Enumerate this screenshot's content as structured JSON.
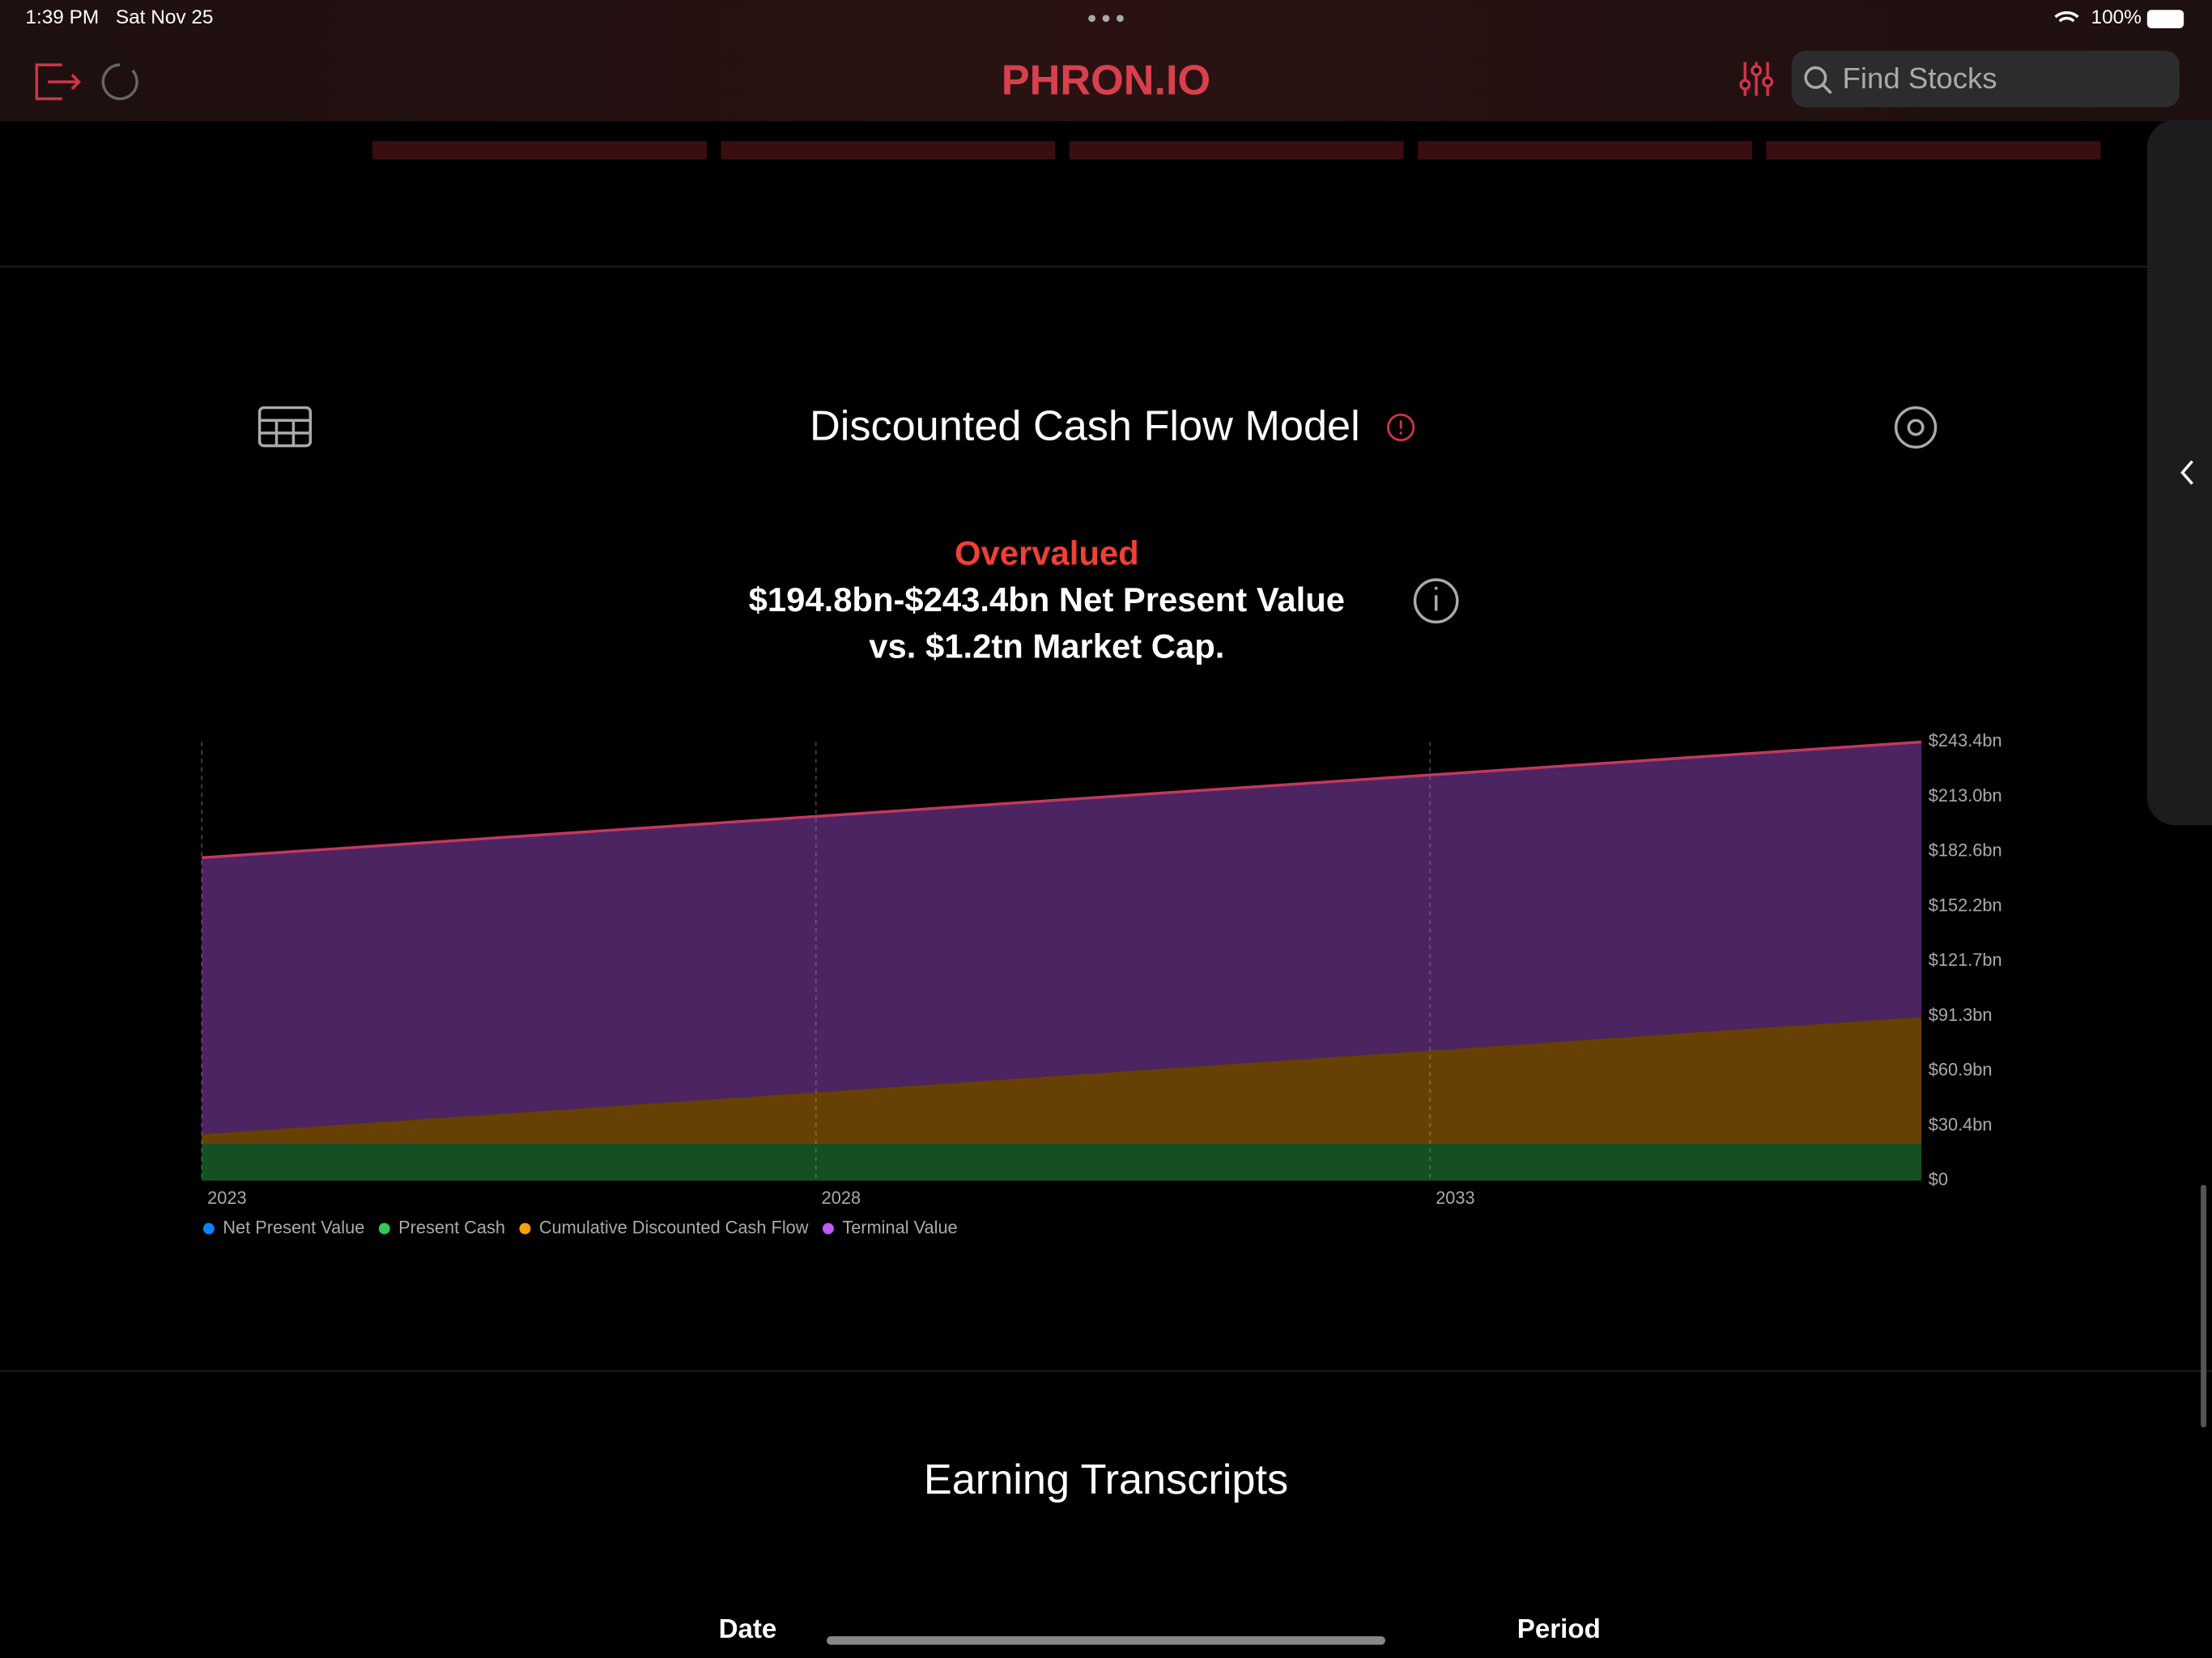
{
  "status_bar": {
    "time": "1:39 PM",
    "date": "Sat Nov 25",
    "battery": "100%"
  },
  "header": {
    "title": "PHRON.IO",
    "search_placeholder": "Find Stocks"
  },
  "section": {
    "title": "Discounted Cash Flow Model",
    "verdict": "Overvalued",
    "summary_line1": "$194.8bn-$243.4bn Net Present Value",
    "summary_line2": "vs. $1.2tn Market Cap."
  },
  "chart_data": {
    "type": "area",
    "stacked": true,
    "x": [
      2023,
      2028,
      2033,
      2037
    ],
    "xlim": [
      2023,
      2037
    ],
    "xticks": [
      2023,
      2028,
      2033
    ],
    "ylim": [
      0,
      243.4
    ],
    "yticks": [
      {
        "value": 0,
        "label": "$0"
      },
      {
        "value": 30.4,
        "label": "$30.4bn"
      },
      {
        "value": 60.9,
        "label": "$60.9bn"
      },
      {
        "value": 91.3,
        "label": "$91.3bn"
      },
      {
        "value": 121.7,
        "label": "$121.7bn"
      },
      {
        "value": 152.2,
        "label": "$152.2bn"
      },
      {
        "value": 182.6,
        "label": "$182.6bn"
      },
      {
        "value": 213,
        "label": "$213.0bn"
      },
      {
        "value": 243.4,
        "label": "$243.4bn"
      }
    ],
    "grid": true,
    "series": [
      {
        "name": "Net Present Value",
        "type": "line",
        "color": "#0a84ff",
        "line_color": "#c2385f",
        "values": [
          179.2,
          202.1,
          225.1,
          243.4
        ]
      },
      {
        "name": "Present Cash",
        "color": "#34c759",
        "values": [
          20.3,
          20.3,
          20.3,
          20.3
        ]
      },
      {
        "name": "Cumulative Discounted Cash Flow",
        "color": "#ff9f0a",
        "values": [
          5.5,
          28.7,
          51.9,
          70.5
        ]
      },
      {
        "name": "Terminal Value",
        "color": "#bf5af2",
        "values": [
          153.4,
          153.1,
          152.9,
          152.6
        ]
      }
    ]
  },
  "transcripts": {
    "title": "Earning Transcripts",
    "columns": [
      "Date",
      "Period"
    ]
  }
}
